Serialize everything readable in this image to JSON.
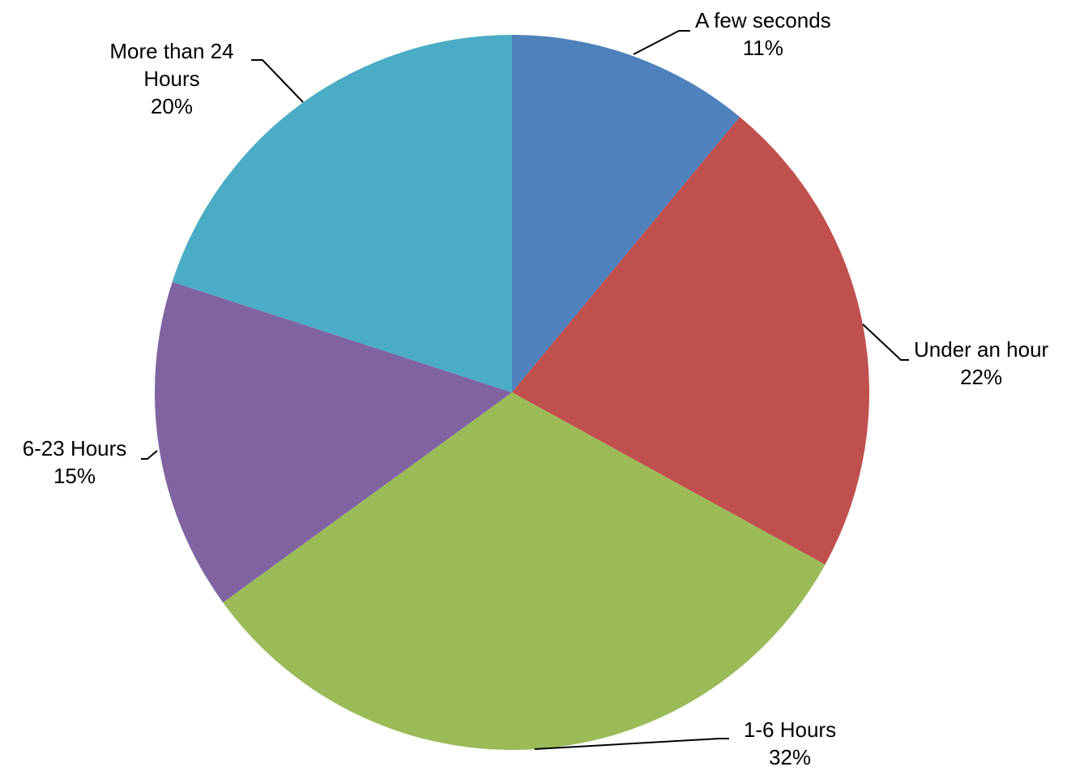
{
  "chart_data": {
    "type": "pie",
    "title": "",
    "unit": "%",
    "categories": [
      "A few seconds",
      "Under an hour",
      "1-6 Hours",
      "6-23 Hours",
      "More than 24 Hours"
    ],
    "values": [
      11,
      22,
      32,
      15,
      20
    ],
    "colors": [
      "#4F81BD",
      "#C0504D",
      "#9BBB59",
      "#8064A2",
      "#4BACC6"
    ],
    "labels": [
      {
        "lines": [
          "A few seconds",
          "11%"
        ]
      },
      {
        "lines": [
          "Under an hour",
          "22%"
        ]
      },
      {
        "lines": [
          "1-6 Hours",
          "32%"
        ]
      },
      {
        "lines": [
          "6-23 Hours",
          "15%"
        ]
      },
      {
        "lines": [
          "More than 24",
          "Hours",
          "20%"
        ]
      }
    ],
    "legend": "none",
    "start": "12 o'clock, clockwise"
  }
}
